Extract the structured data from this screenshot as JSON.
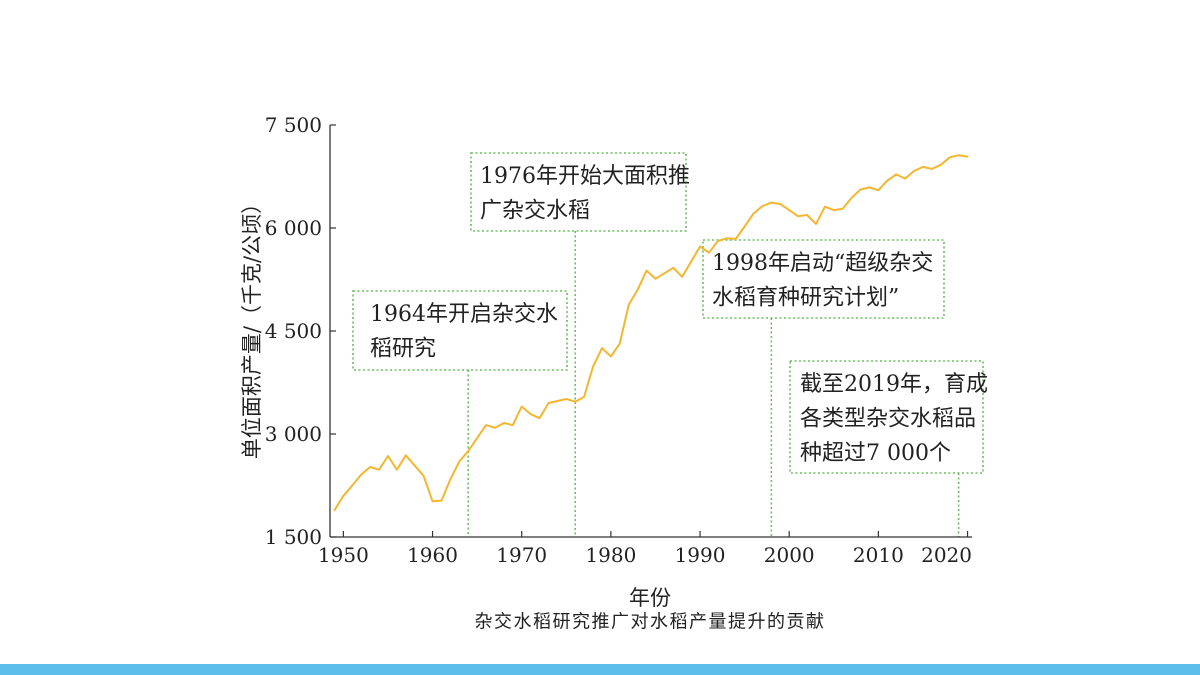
{
  "chart_data": {
    "type": "line",
    "xlabel": "年份",
    "ylabel": "单位面积产量/（千克/公顷）",
    "caption": "杂交水稻研究推广对水稻产量提升的贡献",
    "xlim": [
      1948.5,
      2020.5
    ],
    "ylim": [
      1500,
      7500
    ],
    "grid": false,
    "x_ticks": [
      1950,
      1960,
      1970,
      1980,
      1990,
      2000,
      2010,
      2020
    ],
    "y_ticks": [
      {
        "value": 1500,
        "label": "1 500"
      },
      {
        "value": 3000,
        "label": "3 000"
      },
      {
        "value": 4500,
        "label": "4 500"
      },
      {
        "value": 6000,
        "label": "6 000"
      },
      {
        "value": 7500,
        "label": "7 500"
      }
    ],
    "series": [
      {
        "color": "#f4b630",
        "x": [
          1949,
          1950,
          1951,
          1952,
          1953,
          1954,
          1955,
          1956,
          1957,
          1958,
          1959,
          1960,
          1961,
          1962,
          1963,
          1964,
          1965,
          1966,
          1967,
          1968,
          1969,
          1970,
          1971,
          1972,
          1973,
          1974,
          1975,
          1976,
          1977,
          1978,
          1979,
          1980,
          1981,
          1982,
          1983,
          1984,
          1985,
          1986,
          1987,
          1988,
          1989,
          1990,
          1991,
          1992,
          1993,
          1994,
          1995,
          1996,
          1997,
          1998,
          1999,
          2000,
          2001,
          2002,
          2003,
          2004,
          2005,
          2006,
          2007,
          2008,
          2009,
          2010,
          2011,
          2012,
          2013,
          2014,
          2015,
          2016,
          2017,
          2018,
          2019,
          2020
        ],
        "y": [
          1890,
          2100,
          2250,
          2410,
          2520,
          2480,
          2680,
          2480,
          2690,
          2540,
          2390,
          2020,
          2030,
          2340,
          2600,
          2750,
          2940,
          3130,
          3090,
          3160,
          3130,
          3400,
          3290,
          3230,
          3450,
          3480,
          3510,
          3470,
          3540,
          3980,
          4250,
          4130,
          4320,
          4880,
          5100,
          5380,
          5260,
          5340,
          5420,
          5290,
          5510,
          5730,
          5640,
          5810,
          5850,
          5840,
          6020,
          6210,
          6320,
          6370,
          6350,
          6260,
          6170,
          6190,
          6060,
          6310,
          6260,
          6280,
          6440,
          6560,
          6590,
          6550,
          6690,
          6780,
          6720,
          6830,
          6890,
          6860,
          6920,
          7030,
          7060,
          7040
        ]
      }
    ],
    "annotation_color": "#6abf5e",
    "annotations": [
      {
        "year": 1964,
        "lines": [
          "1964年开启杂交水",
          "稻研究"
        ]
      },
      {
        "year": 1976,
        "lines": [
          "1976年开始大面积推",
          "广杂交水稻"
        ]
      },
      {
        "year": 1998,
        "lines": [
          "1998年启动“超级杂交",
          "水稻育种研究计划”"
        ]
      },
      {
        "year": 2019,
        "lines": [
          "截至2019年，育成",
          "各类型杂交水稻品",
          "种超过7 000个"
        ]
      }
    ]
  },
  "page": {
    "accent_bar_color": "#5cbdea"
  }
}
